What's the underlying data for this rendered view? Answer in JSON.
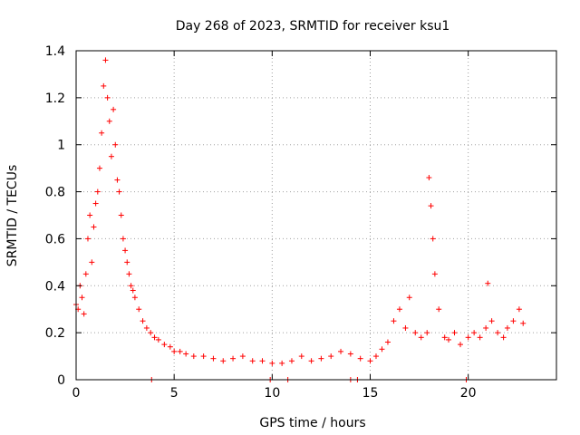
{
  "chart_data": {
    "type": "scatter",
    "title": "Day 268 of 2023, SRMTID for receiver ksu1",
    "xlabel": "GPS time / hours",
    "ylabel": "SRMTID / TECUs",
    "xlim": [
      0,
      24.5
    ],
    "ylim": [
      0,
      1.4
    ],
    "xticks": [
      0,
      5,
      10,
      15,
      20
    ],
    "yticks": [
      0,
      0.2,
      0.4,
      0.6,
      0.8,
      1,
      1.2,
      1.4
    ],
    "ytick_labels": [
      "0",
      "0.2",
      "0.4",
      "0.6",
      "0.8",
      "1",
      "1.2",
      "1.4"
    ],
    "grid": true,
    "marker": "plus",
    "color": "#ff0000",
    "series": [
      {
        "name": "ksu1",
        "x": [
          0.0,
          0.1,
          0.2,
          0.3,
          0.4,
          0.5,
          0.6,
          0.7,
          0.8,
          0.9,
          1.0,
          1.1,
          1.2,
          1.3,
          1.4,
          1.5,
          1.6,
          1.7,
          1.8,
          1.9,
          2.0,
          2.1,
          2.2,
          2.3,
          2.4,
          2.5,
          2.6,
          2.7,
          2.8,
          2.9,
          3.0,
          3.2,
          3.4,
          3.6,
          3.8,
          4.0,
          4.2,
          4.5,
          4.8,
          5.0,
          5.3,
          5.6,
          6.0,
          6.5,
          7.0,
          7.5,
          8.0,
          8.5,
          9.0,
          9.5,
          10.0,
          10.5,
          11.0,
          11.5,
          12.0,
          12.5,
          13.0,
          13.5,
          14.0,
          14.5,
          15.0,
          15.3,
          15.6,
          15.9,
          16.2,
          16.5,
          16.8,
          17.0,
          17.3,
          17.6,
          17.9,
          18.0,
          18.1,
          18.2,
          18.3,
          18.5,
          18.8,
          19.0,
          19.3,
          19.6,
          20.0,
          20.3,
          20.6,
          20.9,
          21.0,
          21.2,
          21.5,
          21.8,
          22.0,
          22.3,
          22.6,
          22.8,
          3.85,
          9.9,
          10.8,
          14.0,
          14.35,
          19.9
        ],
        "y": [
          0.32,
          0.3,
          0.4,
          0.35,
          0.28,
          0.45,
          0.6,
          0.7,
          0.5,
          0.65,
          0.75,
          0.8,
          0.9,
          1.05,
          1.25,
          1.36,
          1.2,
          1.1,
          0.95,
          1.15,
          1.0,
          0.85,
          0.8,
          0.7,
          0.6,
          0.55,
          0.5,
          0.45,
          0.4,
          0.38,
          0.35,
          0.3,
          0.25,
          0.22,
          0.2,
          0.18,
          0.17,
          0.15,
          0.14,
          0.12,
          0.12,
          0.11,
          0.1,
          0.1,
          0.09,
          0.08,
          0.09,
          0.1,
          0.08,
          0.08,
          0.07,
          0.07,
          0.08,
          0.1,
          0.08,
          0.09,
          0.1,
          0.12,
          0.11,
          0.09,
          0.08,
          0.1,
          0.13,
          0.16,
          0.25,
          0.3,
          0.22,
          0.35,
          0.2,
          0.18,
          0.2,
          0.86,
          0.74,
          0.6,
          0.45,
          0.3,
          0.18,
          0.17,
          0.2,
          0.15,
          0.18,
          0.2,
          0.18,
          0.22,
          0.41,
          0.25,
          0.2,
          0.18,
          0.22,
          0.25,
          0.3,
          0.24,
          0.0,
          0.0,
          0.0,
          0.0,
          0.0,
          0.0
        ]
      }
    ]
  }
}
